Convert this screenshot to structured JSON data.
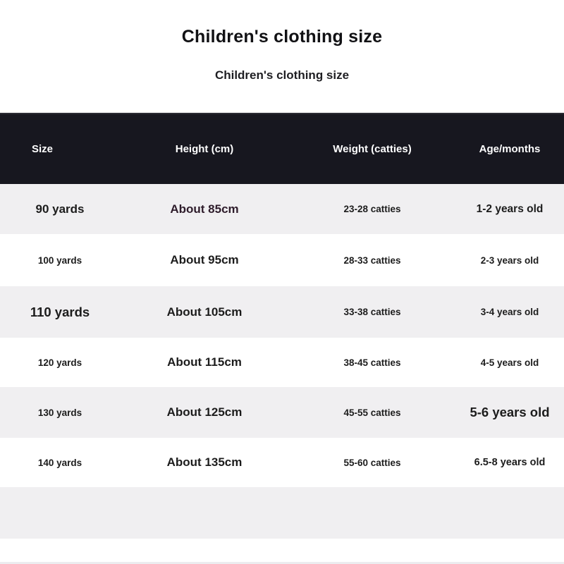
{
  "title": "Children's clothing size",
  "subtitle": "Children's clothing size",
  "table": {
    "columns": [
      "Size",
      "Height (cm)",
      "Weight (catties)",
      "Age/months"
    ],
    "rows": [
      [
        "90 yards",
        "About 85cm",
        "23-28 catties",
        "1-2 years old"
      ],
      [
        "100 yards",
        "About 95cm",
        "28-33 catties",
        "2-3 years old"
      ],
      [
        "110 yards",
        "About 105cm",
        "33-38 catties",
        "3-4 years old"
      ],
      [
        "120 yards",
        "About 115cm",
        "38-45 catties",
        "4-5 years old"
      ],
      [
        "130 yards",
        "About 125cm",
        "45-55 catties",
        "5-6 years old"
      ],
      [
        "140 yards",
        "About 135cm",
        "55-60 catties",
        "6.5-8 years old"
      ]
    ]
  },
  "colors": {
    "header_bg": "#17171f",
    "header_text": "#ffffff",
    "row_alt_bg": "#f0eff1",
    "body_text": "#1c1c1c",
    "accent_text": "#2e1c2b"
  },
  "chart_data": {
    "type": "table",
    "title": "Children's clothing size",
    "columns": [
      "Size",
      "Height (cm)",
      "Weight (catties)",
      "Age/months"
    ],
    "rows": [
      [
        "90 yards",
        "About 85cm",
        "23-28 catties",
        "1-2 years old"
      ],
      [
        "100 yards",
        "About 95cm",
        "28-33 catties",
        "2-3 years old"
      ],
      [
        "110 yards",
        "About 105cm",
        "33-38 catties",
        "3-4 years old"
      ],
      [
        "120 yards",
        "About 115cm",
        "38-45 catties",
        "4-5 years old"
      ],
      [
        "130 yards",
        "About 125cm",
        "45-55 catties",
        "5-6 years old"
      ],
      [
        "140 yards",
        "About 135cm",
        "55-60 catties",
        "6.5-8 years old"
      ]
    ]
  }
}
